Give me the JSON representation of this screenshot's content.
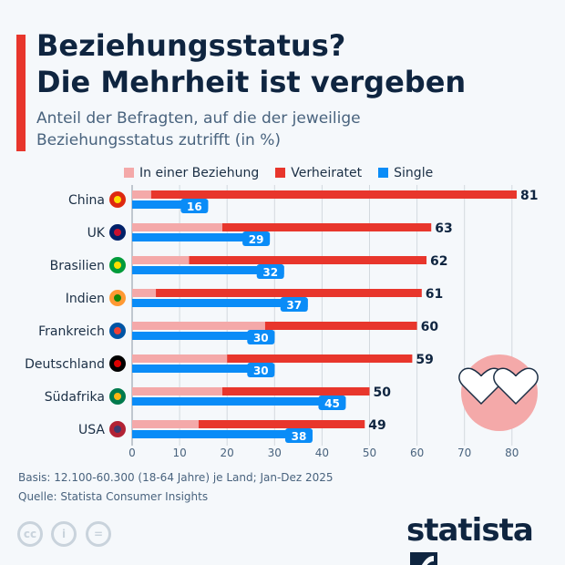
{
  "header": {
    "title_line1": "Beziehungsstatus?",
    "title_line2": "Die Mehrheit ist vergeben",
    "subtitle_line1": "Anteil der Befragten, auf die der jeweilige",
    "subtitle_line2": "Beziehungsstatus zutrifft (in %)"
  },
  "chart_data": {
    "type": "bar",
    "orientation": "horizontal",
    "categories": [
      "China",
      "UK",
      "Brasilien",
      "Indien",
      "Frankreich",
      "Deutschland",
      "Südafrika",
      "USA"
    ],
    "series": [
      {
        "name": "In einer Beziehung",
        "color": "#f4a9a9",
        "values": [
          4,
          19,
          12,
          5,
          28,
          20,
          19,
          14
        ]
      },
      {
        "name": "Verheiratet",
        "color": "#e8362c",
        "values": [
          77,
          44,
          50,
          56,
          32,
          39,
          31,
          35
        ]
      },
      {
        "name": "Single",
        "color": "#0a8cf7",
        "values": [
          16,
          29,
          32,
          37,
          30,
          30,
          45,
          38
        ]
      }
    ],
    "stacked_labels": [
      81,
      63,
      62,
      61,
      60,
      59,
      50,
      49
    ],
    "xlim": [
      0,
      85
    ],
    "xticks": [
      0,
      10,
      20,
      30,
      40,
      50,
      60,
      70,
      80
    ],
    "grid": true,
    "legend_placement": "top"
  },
  "footer": {
    "basis": "Basis: 12.100-60.300 (18-64 Jahre) je Land; Jan-Dez 2025",
    "source": "Quelle: Statista Consumer Insights"
  },
  "brand": {
    "logo": "statista"
  },
  "icons": [
    "cc-icon",
    "attribution-icon",
    "no-derivatives-icon",
    "two-hearts-icon",
    "flag-icons"
  ]
}
